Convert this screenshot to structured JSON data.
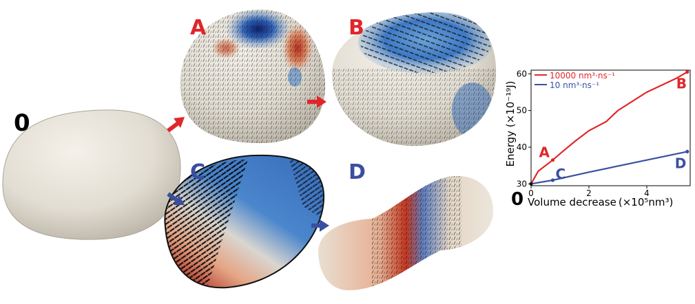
{
  "panels": {
    "zero": {
      "label": "0"
    },
    "A": {
      "label": "A"
    },
    "B": {
      "label": "B"
    },
    "C": {
      "label": "C"
    },
    "D": {
      "label": "D"
    }
  },
  "colors": {
    "red": "#e0262a",
    "blue": "#3a4fa0",
    "membrane": "#e6e1d6"
  },
  "chart_data": {
    "type": "line",
    "xlabel_main": "Volume decrease",
    "xlabel_unit": "(×10⁵nm³)",
    "ylabel": "Energy (×10⁻¹⁹J)",
    "origin_label": "0",
    "xlim": [
      0,
      5.5
    ],
    "ylim": [
      29.5,
      61
    ],
    "xticks": [
      0,
      2,
      4
    ],
    "yticks": [
      30,
      40,
      50,
      60
    ],
    "legend_position": "top-left",
    "series": [
      {
        "name": "10000 nm³·ns⁻¹",
        "color": "#e0262a",
        "x": [
          0,
          0.25,
          0.75,
          1.0,
          1.5,
          2.0,
          2.6,
          3.0,
          4.0,
          5.0,
          5.4
        ],
        "y": [
          30,
          33.5,
          36.5,
          38.2,
          41.5,
          44.5,
          47,
          50,
          55,
          58.7,
          60.5
        ]
      },
      {
        "name": "10 nm³·ns⁻¹",
        "color": "#3a4fa0",
        "x": [
          0,
          0.75,
          2.0,
          4.0,
          5.4
        ],
        "y": [
          30,
          31,
          33.2,
          36.5,
          38.8
        ]
      }
    ],
    "markers": [
      {
        "label": "A",
        "x": 0.75,
        "y": 36.5,
        "color": "#e0262a"
      },
      {
        "label": "B",
        "x": 5.4,
        "y": 60.5,
        "color": "#e0262a"
      },
      {
        "label": "C",
        "x": 0.75,
        "y": 31,
        "color": "#3a4fa0"
      },
      {
        "label": "D",
        "x": 5.4,
        "y": 38.8,
        "color": "#3a4fa0"
      }
    ]
  }
}
